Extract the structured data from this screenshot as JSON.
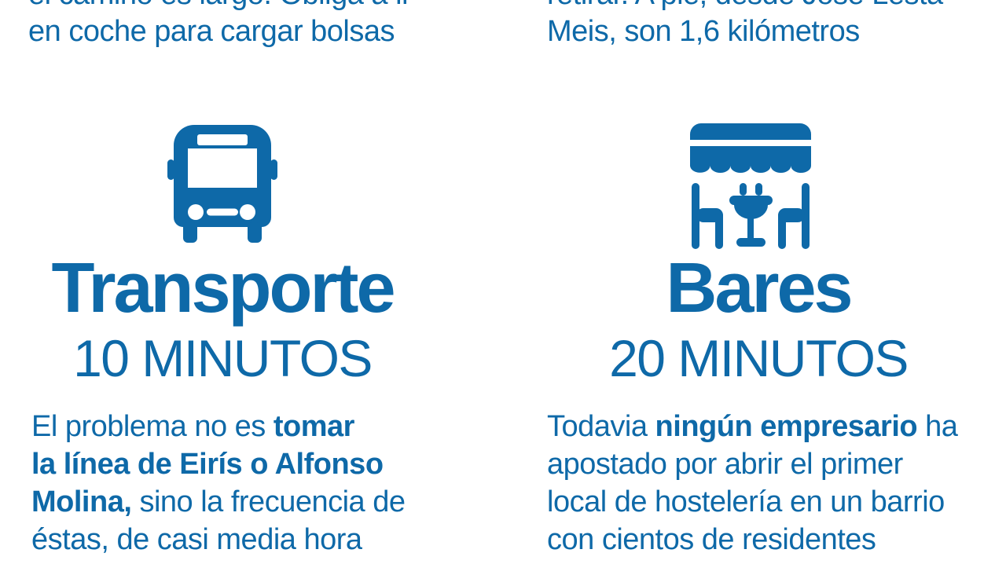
{
  "colors": {
    "accent": "#0e69a8",
    "background": "#ffffff"
  },
  "top_notes": {
    "left": {
      "lines": [
        [
          {
            "t": "el camino es largo. Obliga a ir",
            "b": 0
          }
        ],
        [
          {
            "t": "en coche para cargar bolsas",
            "b": 0
          }
        ]
      ]
    },
    "right": {
      "lines": [
        [
          {
            "t": "retirar. A pie, desde José Lesta",
            "b": 0
          }
        ],
        [
          {
            "t": "Meis, son 1,6 kilómetros",
            "b": 0
          }
        ]
      ]
    }
  },
  "sections": {
    "transporte": {
      "icon": "bus-icon",
      "title": "Transporte",
      "subtitle": "10 MINUTOS",
      "body_lines": [
        [
          {
            "t": "El problema no es ",
            "b": 0
          },
          {
            "t": "tomar",
            "b": 1
          }
        ],
        [
          {
            "t": "la línea de Eirís o Alfonso",
            "b": 1
          }
        ],
        [
          {
            "t": "Molina,",
            "b": 1
          },
          {
            "t": " sino la frecuencia de",
            "b": 0
          }
        ],
        [
          {
            "t": "éstas, de casi media hora",
            "b": 0
          }
        ]
      ]
    },
    "bares": {
      "icon": "bar-terrace-icon",
      "title": "Bares",
      "subtitle": "20 MINUTOS",
      "body_lines": [
        [
          {
            "t": "Todavia ",
            "b": 0
          },
          {
            "t": "ningún empresario",
            "b": 1
          },
          {
            "t": " ha",
            "b": 0
          }
        ],
        [
          {
            "t": "apostado por abrir el primer",
            "b": 0
          }
        ],
        [
          {
            "t": "local de hostelería en un barrio",
            "b": 0
          }
        ],
        [
          {
            "t": "con cientos de residentes",
            "b": 0
          }
        ]
      ]
    }
  }
}
